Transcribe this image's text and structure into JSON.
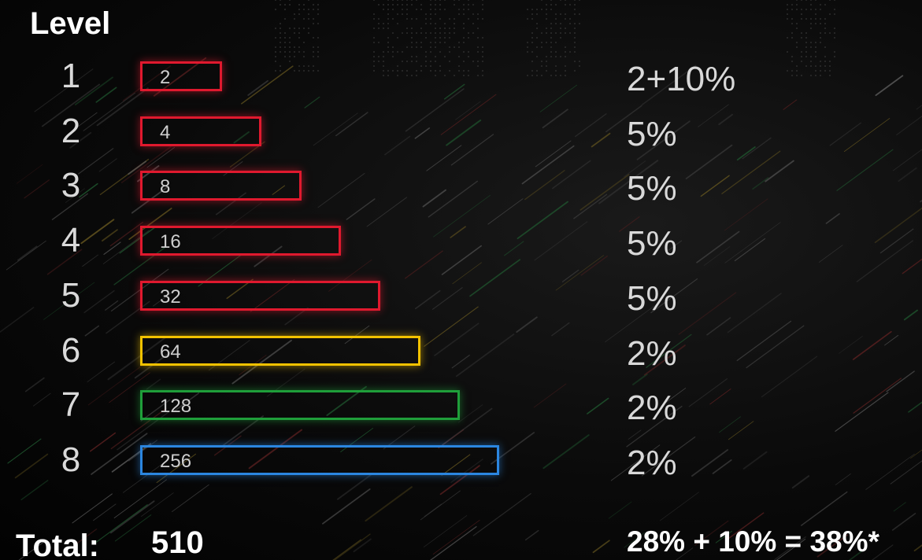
{
  "heading": "Level",
  "chart_data": {
    "type": "bar",
    "orientation": "horizontal",
    "categories": [
      "1",
      "2",
      "3",
      "4",
      "5",
      "6",
      "7",
      "8"
    ],
    "values": [
      2,
      4,
      8,
      16,
      32,
      64,
      128,
      256
    ],
    "value_labels": [
      "2",
      "4",
      "8",
      "16",
      "32",
      "64",
      "128",
      "256"
    ],
    "percent_labels": [
      "2+10%",
      "5%",
      "5%",
      "5%",
      "5%",
      "2%",
      "2%",
      "2%"
    ],
    "bar_colors": [
      "#e0192e",
      "#e0192e",
      "#e0192e",
      "#e0192e",
      "#e0192e",
      "#f2c200",
      "#1f9e3a",
      "#2b86e0"
    ],
    "title": "",
    "xlabel": "",
    "ylabel": "Level",
    "legend": "none",
    "grid": false
  },
  "total": {
    "label": "Total:",
    "value": "510"
  },
  "percent_summary": "28% + 10% = 38%*",
  "background": "dark with light streaks"
}
